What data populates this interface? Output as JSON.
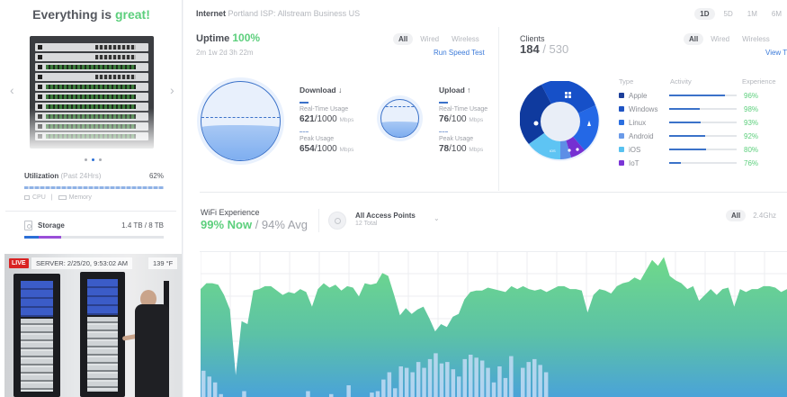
{
  "sidebar": {
    "status_prefix": "Everything is ",
    "status_highlight": "great!",
    "status_highlight_color": "#5ccf7c",
    "carousel": {
      "prev_icon": "chevron-left-icon",
      "next_icon": "chevron-right-icon",
      "dots": 3,
      "active_dot": 1,
      "prev_glyph": "‹",
      "next_glyph": "›"
    },
    "utilization": {
      "label": "Utilization",
      "period": "(Past 24Hrs)",
      "value": "62%",
      "legend_cpu": "CPU",
      "legend_sep": "|",
      "legend_memory": "Memory"
    },
    "storage": {
      "label": "Storage",
      "value": "1.4 TB / 8 TB"
    },
    "camera": {
      "live_label": "LIVE",
      "timestamp": "SERVER: 2/25/20, 9:53:02 AM",
      "temperature": "139 °F"
    }
  },
  "header": {
    "internet_label": "Internet",
    "isp": "Portland ISP: Allstream Business US",
    "ranges": [
      "1D",
      "5D",
      "1M",
      "6M"
    ],
    "active_range": "1D"
  },
  "internet": {
    "uptime_label": "Uptime",
    "uptime_value": "100%",
    "uptime_duration": "2m 1w 2d 3h 22m",
    "filters": [
      "All",
      "Wired",
      "Wireless"
    ],
    "active_filter": "All",
    "speed_test_label": "Run Speed Test",
    "download": {
      "title": "Download ↓",
      "realtime_label": "Real-Time Usage",
      "realtime_value": "621",
      "realtime_total": "/1000",
      "peak_label": "Peak Usage",
      "peak_value": "654",
      "peak_total": "/1000",
      "unit": "Mbps"
    },
    "upload": {
      "title": "Upload ↑",
      "realtime_label": "Real-Time Usage",
      "realtime_value": "76",
      "realtime_total": "/100",
      "peak_label": "Peak Usage",
      "peak_value": "78",
      "peak_total": "/100",
      "unit": "Mbps"
    }
  },
  "clients": {
    "title": "Clients",
    "count": "184",
    "total": "/ 530",
    "filters": [
      "All",
      "Wired",
      "Wireless"
    ],
    "active_filter": "All",
    "view_link": "View T",
    "columns": [
      "Type",
      "Activity",
      "Experience"
    ],
    "rows": [
      {
        "type": "Apple",
        "color": "#1d3f9a",
        "activity": 82,
        "experience": "96%"
      },
      {
        "type": "Windows",
        "color": "#1f54c4",
        "activity": 45,
        "experience": "98%"
      },
      {
        "type": "Linux",
        "color": "#2b6fe0",
        "activity": 47,
        "experience": "93%"
      },
      {
        "type": "Android",
        "color": "#6a9ae8",
        "activity": 53,
        "experience": "92%"
      },
      {
        "type": "iOS",
        "color": "#58c2f0",
        "activity": 54,
        "experience": "80%"
      },
      {
        "type": "IoT",
        "color": "#7a35d6",
        "activity": 17,
        "experience": "76%"
      }
    ]
  },
  "wifi": {
    "title": "WiFi Experience",
    "now": "99% Now",
    "avg": " / 94% Avg",
    "ap_title": "All Access Points",
    "ap_sub": "12 Total",
    "ap_chevron": "⌄",
    "bands": [
      "All",
      "2.4Ghz"
    ],
    "active_band": "All"
  },
  "chart_data": {
    "type": "area",
    "title": "WiFi Experience",
    "series": [
      {
        "name": "experience",
        "values": [
          74,
          78,
          78,
          77,
          70,
          60,
          15,
          52,
          50,
          73,
          74,
          76,
          76,
          73,
          70,
          72,
          71,
          74,
          72,
          62,
          74,
          78,
          75,
          77,
          73,
          76,
          75,
          69,
          78,
          77,
          78,
          85,
          83,
          70,
          56,
          61,
          57,
          60,
          62,
          54,
          45,
          50,
          48,
          55,
          57,
          67,
          72,
          73,
          73,
          75,
          74,
          73,
          72,
          76,
          74,
          76,
          74,
          73,
          74,
          72,
          74,
          76,
          76,
          74,
          74,
          73,
          58,
          70,
          74,
          73,
          71,
          76,
          78,
          79,
          82,
          80,
          87,
          94,
          90,
          96,
          83,
          80,
          78,
          74,
          76,
          66,
          70,
          74,
          70,
          74,
          75,
          62,
          74,
          72,
          74,
          74,
          76,
          76,
          75,
          72,
          74
        ]
      },
      {
        "name": "clients",
        "values": [
          18,
          14,
          10,
          2,
          0,
          0,
          0,
          4,
          0,
          0,
          0,
          0,
          0,
          0,
          0,
          0,
          0,
          0,
          4,
          0,
          0,
          0,
          2,
          0,
          0,
          8,
          0,
          0,
          0,
          3,
          4,
          12,
          17,
          6,
          21,
          20,
          17,
          24,
          20,
          26,
          30,
          23,
          24,
          19,
          14,
          26,
          29,
          27,
          25,
          20,
          10,
          21,
          13,
          28,
          0,
          20,
          24,
          26,
          22,
          17,
          0,
          0,
          0,
          0,
          0,
          0,
          0,
          0,
          0,
          0,
          0,
          0,
          0,
          0,
          0,
          0,
          0,
          0,
          0,
          0,
          0,
          0,
          0,
          0,
          0,
          0,
          0,
          0,
          0,
          0,
          0,
          0,
          0,
          0,
          0,
          0,
          0,
          0,
          0,
          0,
          0
        ]
      }
    ],
    "xlabel": "",
    "ylabel": "",
    "grid": true,
    "legend": "none"
  }
}
